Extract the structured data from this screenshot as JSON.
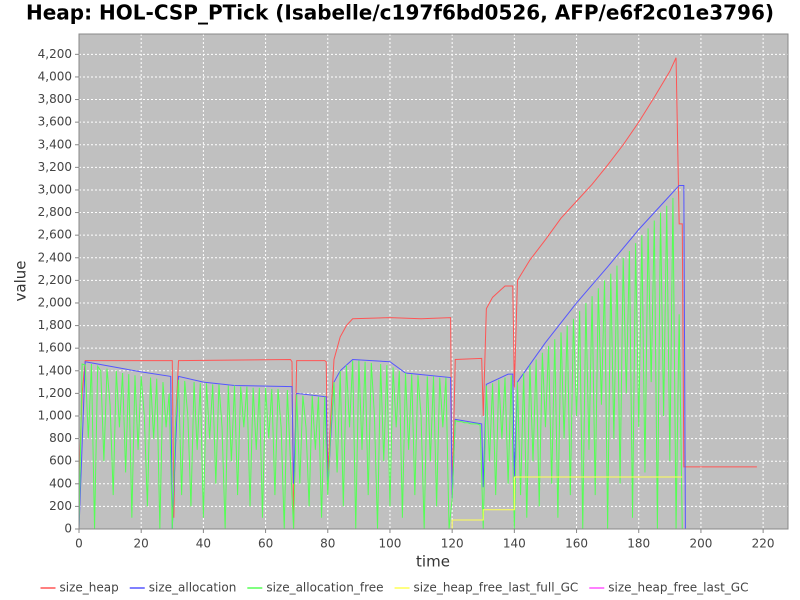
{
  "chart_data": {
    "type": "line",
    "title": "Heap: HOL-CSP_PTick (Isabelle/c197f6bd0526, AFP/e6f2c01e3796)",
    "x_label": "time",
    "y_label": "value",
    "xlim": [
      0,
      228
    ],
    "ylim": [
      0,
      4380
    ],
    "xticks": [
      0,
      20,
      40,
      60,
      80,
      100,
      120,
      140,
      160,
      180,
      200,
      220
    ],
    "yticks": [
      0,
      200,
      400,
      600,
      800,
      {
        "value": 1000,
        "label": "1,000"
      },
      {
        "value": 1200,
        "label": "1,200"
      },
      {
        "value": 1400,
        "label": "1,400"
      },
      {
        "value": 1600,
        "label": "1,600"
      },
      {
        "value": 1800,
        "label": "1,800"
      },
      {
        "value": 2000,
        "label": "2,000"
      },
      {
        "value": 2200,
        "label": "2,200"
      },
      {
        "value": 2400,
        "label": "2,400"
      },
      {
        "value": 2600,
        "label": "2,600"
      },
      {
        "value": 2800,
        "label": "2,800"
      },
      {
        "value": 3000,
        "label": "3,000"
      },
      {
        "value": 3200,
        "label": "3,200"
      },
      {
        "value": 3400,
        "label": "3,400"
      },
      {
        "value": 3600,
        "label": "3,600"
      },
      {
        "value": 3800,
        "label": "3,800"
      },
      {
        "value": 4000,
        "label": "4,000"
      },
      {
        "value": 4200,
        "label": "4,200"
      }
    ],
    "grid": true,
    "legend": "bottom",
    "series": [
      {
        "name": "size_heap",
        "color": "#ff5555",
        "x": [
          0,
          1,
          2,
          30,
          30.5,
          31,
          32,
          68,
          68.5,
          69,
          70,
          79,
          79.5,
          80,
          82,
          84,
          86,
          88,
          100,
          110,
          119.5,
          120,
          121,
          129.5,
          130,
          131,
          133,
          135,
          137,
          139.5,
          140,
          141,
          145,
          150,
          155,
          160,
          165,
          170,
          175,
          180,
          185,
          190,
          192,
          193,
          194,
          194.5,
          195,
          218
        ],
        "values": [
          400,
          1200,
          1490,
          1490,
          100,
          900,
          1490,
          1500,
          1480,
          0,
          1490,
          1490,
          1480,
          500,
          1500,
          1700,
          1800,
          1860,
          1870,
          1860,
          1870,
          300,
          1500,
          1510,
          1000,
          1950,
          2050,
          2100,
          2150,
          2150,
          1250,
          2200,
          2380,
          2560,
          2750,
          2900,
          3050,
          3220,
          3400,
          3600,
          3820,
          4050,
          4170,
          2700,
          2700,
          550,
          550,
          550
        ]
      },
      {
        "name": "size_allocation",
        "color": "#5555ff",
        "x": [
          0,
          2,
          10,
          20,
          29.5,
          30,
          31,
          32,
          40,
          50,
          68.5,
          69,
          70,
          79.5,
          80,
          82,
          84,
          86,
          88,
          100,
          105,
          119.5,
          120,
          121,
          129.5,
          130,
          131,
          138,
          139.5,
          140,
          141,
          150,
          160,
          170,
          180,
          190,
          193,
          194.5,
          195,
          218
        ],
        "values": [
          0,
          1480,
          1440,
          1390,
          1350,
          0,
          700,
          1350,
          1300,
          1270,
          1260,
          400,
          1200,
          1170,
          350,
          1300,
          1400,
          1450,
          1500,
          1480,
          1380,
          1340,
          270,
          970,
          930,
          370,
          1280,
          1370,
          1370,
          460,
          1300,
          1650,
          2000,
          2320,
          2650,
          2950,
          3040,
          3040,
          0,
          0
        ]
      },
      {
        "name": "size_allocation_free",
        "color": "#55ff55",
        "x": [
          0,
          1,
          2,
          3,
          4,
          5,
          6,
          7,
          8,
          9,
          10,
          11,
          12,
          13,
          14,
          15,
          16,
          17,
          18,
          19,
          20,
          21,
          22,
          23,
          24,
          25,
          26,
          27,
          28,
          29,
          30,
          31,
          32,
          33,
          34,
          35,
          36,
          37,
          38,
          39,
          40,
          41,
          42,
          43,
          44,
          45,
          46,
          47,
          48,
          49,
          50,
          51,
          52,
          53,
          54,
          55,
          56,
          57,
          58,
          59,
          60,
          61,
          62,
          63,
          64,
          65,
          66,
          67,
          68,
          69,
          70,
          71,
          72,
          73,
          74,
          75,
          76,
          77,
          78,
          79,
          80,
          81,
          82,
          83,
          84,
          85,
          86,
          87,
          88,
          89,
          90,
          91,
          92,
          93,
          94,
          95,
          96,
          97,
          98,
          99,
          100,
          101,
          102,
          103,
          104,
          105,
          106,
          107,
          108,
          109,
          110,
          111,
          112,
          113,
          114,
          115,
          116,
          117,
          118,
          119,
          120,
          121,
          122,
          123,
          124,
          125,
          126,
          127,
          128,
          129,
          130,
          131,
          132,
          133,
          134,
          135,
          136,
          137,
          138,
          139,
          140,
          141,
          142,
          143,
          144,
          145,
          146,
          147,
          148,
          149,
          150,
          151,
          152,
          153,
          154,
          155,
          156,
          157,
          158,
          159,
          160,
          161,
          162,
          163,
          164,
          165,
          166,
          167,
          168,
          169,
          170,
          171,
          172,
          173,
          174,
          175,
          176,
          177,
          178,
          179,
          180,
          181,
          182,
          183,
          184,
          185,
          186,
          187,
          188,
          189,
          190,
          191,
          192,
          193,
          194
        ],
        "values": [
          0,
          1460,
          1450,
          800,
          1460,
          0,
          1440,
          1400,
          600,
          1420,
          1100,
          300,
          1400,
          900,
          1380,
          500,
          1370,
          100,
          1360,
          700,
          1350,
          1000,
          200,
          1340,
          800,
          1330,
          0,
          1300,
          900,
          1200,
          0,
          900,
          1320,
          300,
          1310,
          1000,
          200,
          1300,
          700,
          1290,
          100,
          1290,
          800,
          1280,
          400,
          1280,
          900,
          0,
          1270,
          600,
          1270,
          300,
          1260,
          900,
          1260,
          200,
          1250,
          700,
          1250,
          100,
          1250,
          800,
          1240,
          300,
          1240,
          900,
          0,
          1230,
          600,
          0,
          1190,
          400,
          1180,
          900,
          200,
          1180,
          700,
          1170,
          100,
          1170,
          300,
          900,
          1300,
          500,
          1400,
          200,
          1450,
          900,
          1490,
          0,
          1490,
          700,
          1480,
          300,
          1470,
          1000,
          0,
          1460,
          600,
          1450,
          200,
          1430,
          900,
          1400,
          100,
          1380,
          700,
          1370,
          300,
          1360,
          1000,
          0,
          1350,
          600,
          1350,
          200,
          1340,
          900,
          1340,
          0,
          270,
          960,
          950,
          950,
          940,
          940,
          930,
          930,
          930,
          920,
          0,
          1270,
          600,
          1290,
          300,
          1320,
          800,
          1340,
          400,
          1360,
          0,
          1300,
          300,
          1380,
          100,
          1450,
          600,
          1500,
          200,
          1560,
          900,
          1620,
          400,
          1680,
          100,
          1740,
          800,
          1800,
          300,
          1860,
          1000,
          1930,
          0,
          2000,
          700,
          2060,
          300,
          2130,
          1100,
          2200,
          0,
          2260,
          800,
          2330,
          400,
          2400,
          1200,
          2460,
          100,
          2530,
          900,
          2600,
          500,
          2660,
          1300,
          2730,
          0,
          2800,
          1000,
          2860,
          600,
          2930,
          0,
          1900,
          0
        ]
      },
      {
        "name": "size_heap_free_last_full_GC",
        "color": "#ffff55",
        "x": [
          0,
          120,
          120,
          130,
          130,
          140,
          140,
          194
        ],
        "values": [
          0,
          0,
          80,
          80,
          170,
          170,
          460,
          460
        ]
      },
      {
        "name": "size_heap_free_last_GC",
        "color": "#ff55ff",
        "x": [
          0,
          194
        ],
        "values": [
          0,
          0
        ]
      }
    ]
  }
}
